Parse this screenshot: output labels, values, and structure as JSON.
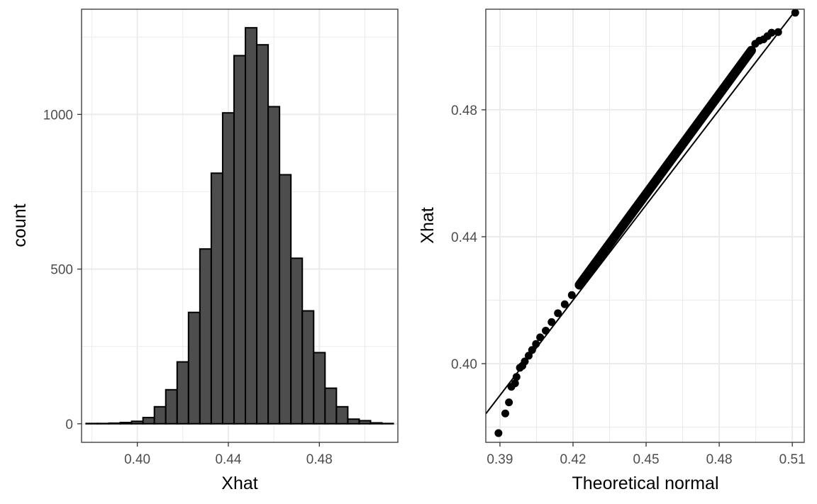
{
  "chart_data": [
    {
      "type": "bar",
      "subtype": "histogram",
      "title": "",
      "xlabel": "Xhat",
      "ylabel": "count",
      "bin_centers": [
        0.38,
        0.385,
        0.39,
        0.395,
        0.4,
        0.405,
        0.41,
        0.415,
        0.42,
        0.425,
        0.43,
        0.435,
        0.44,
        0.445,
        0.45,
        0.455,
        0.46,
        0.465,
        0.47,
        0.475,
        0.48,
        0.485,
        0.49,
        0.495,
        0.5,
        0.505,
        0.51
      ],
      "bin_width": 0.005,
      "values": [
        1,
        1,
        2,
        4,
        8,
        20,
        55,
        110,
        200,
        360,
        565,
        810,
        1005,
        1190,
        1280,
        1225,
        1025,
        805,
        535,
        365,
        230,
        115,
        55,
        15,
        10,
        3,
        1
      ],
      "xlim": [
        0.3755,
        0.5145
      ],
      "ylim": [
        -60,
        1340
      ],
      "x_ticks": [
        0.4,
        0.44,
        0.48
      ],
      "x_tick_labels": [
        "0.40",
        "0.44",
        "0.48"
      ],
      "y_ticks": [
        0,
        500,
        1000
      ],
      "y_tick_labels": [
        "0",
        "500",
        "1000"
      ],
      "x_minor_ticks": [
        0.38,
        0.42,
        0.46,
        0.5
      ],
      "y_minor_ticks": [
        250,
        750,
        1250
      ],
      "bar_fill": "#4d4d4d",
      "bar_stroke": "#000000",
      "grid": true,
      "legend": "none"
    },
    {
      "type": "scatter",
      "subtype": "qq-plot",
      "title": "",
      "xlabel": "Theoretical normal",
      "ylabel": "Xhat",
      "xlim": [
        0.3842,
        0.5149
      ],
      "ylim": [
        0.3752,
        0.5117
      ],
      "x_ticks": [
        0.39,
        0.42,
        0.45,
        0.48,
        0.51
      ],
      "x_tick_labels": [
        "0.39",
        "0.42",
        "0.45",
        "0.48",
        "0.51"
      ],
      "y_ticks": [
        0.4,
        0.44,
        0.48
      ],
      "y_tick_labels": [
        "0.40",
        "0.44",
        "0.48"
      ],
      "x_minor_ticks": [
        0.405,
        0.435,
        0.465,
        0.495
      ],
      "y_minor_ticks": [
        0.38,
        0.42,
        0.46,
        0.5
      ],
      "points": [
        [
          0.3894,
          0.3781
        ],
        [
          0.3922,
          0.3843
        ],
        [
          0.3937,
          0.3878
        ],
        [
          0.3947,
          0.3927
        ],
        [
          0.3962,
          0.3938
        ],
        [
          0.3968,
          0.3958
        ],
        [
          0.3982,
          0.3987
        ],
        [
          0.3992,
          0.3993
        ],
        [
          0.4002,
          0.4007
        ],
        [
          0.4018,
          0.4025
        ],
        [
          0.4032,
          0.4043
        ],
        [
          0.4048,
          0.4062
        ],
        [
          0.4065,
          0.4083
        ],
        [
          0.4088,
          0.4104
        ],
        [
          0.4112,
          0.4131
        ],
        [
          0.4138,
          0.4159
        ],
        [
          0.4166,
          0.4187
        ],
        [
          0.4195,
          0.4216
        ],
        [
          0.4226,
          0.4248
        ],
        [
          0.4932,
          0.4987
        ],
        [
          0.4948,
          0.5008
        ],
        [
          0.4965,
          0.5018
        ],
        [
          0.4982,
          0.5022
        ],
        [
          0.4998,
          0.5032
        ],
        [
          0.5015,
          0.5043
        ],
        [
          0.5042,
          0.5045
        ],
        [
          0.5112,
          0.5106
        ]
      ],
      "dense_segment": {
        "from": [
          0.4226,
          0.4248
        ],
        "to": [
          0.4932,
          0.4987
        ]
      },
      "reference_line": {
        "slope": 1.0,
        "intercept": 0.0
      },
      "point_color": "#000000",
      "grid": true,
      "legend": "none"
    }
  ]
}
